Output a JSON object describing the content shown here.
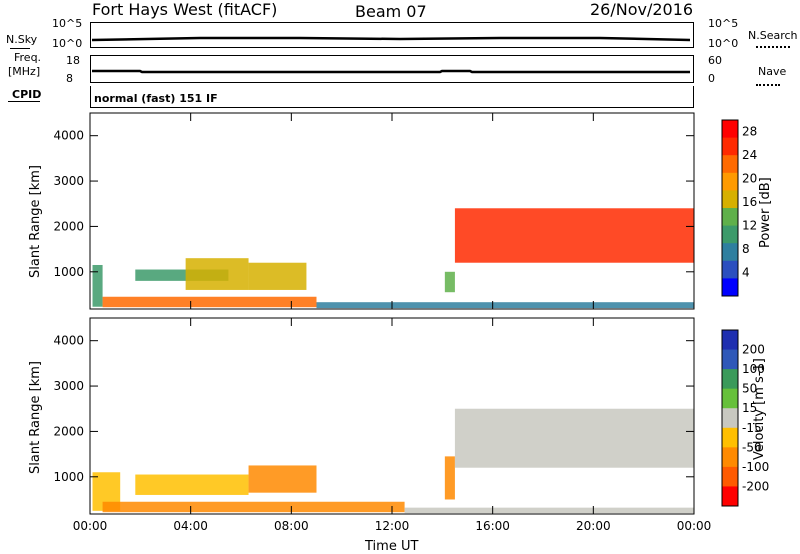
{
  "header": {
    "station": "Fort Hays West (fitACF)",
    "beam": "Beam 07",
    "date": "26/Nov/2016"
  },
  "top_panels": {
    "nsky": {
      "label": "N.Sky",
      "ticks": [
        "10^5",
        "10^0"
      ]
    },
    "nsearch": {
      "label": "N.Search",
      "ticks": [
        "10^5",
        "10^0"
      ]
    },
    "freq": {
      "label_line1": "Freq.",
      "label_line2": "[MHz]",
      "ticks": [
        "18",
        "8"
      ]
    },
    "nave": {
      "label": "Nave",
      "ticks": [
        "60",
        "0"
      ]
    },
    "cpid": {
      "label": "CPID",
      "value": "normal (fast) 151 IF"
    }
  },
  "chart_data": [
    {
      "type": "heatmap",
      "name": "power",
      "ylabel": "Slant Range [km]",
      "xlabel": "",
      "x_ticks": [
        "00:00",
        "04:00",
        "08:00",
        "12:00",
        "16:00",
        "20:00",
        "00:00"
      ],
      "y_ticks": [
        1000,
        2000,
        3000,
        4000
      ],
      "xlim_hours": [
        0,
        24
      ],
      "ylim_km": [
        180,
        4500
      ],
      "colorbar": {
        "label": "Power [dB]",
        "ticks": [
          4,
          8,
          12,
          16,
          20,
          24,
          28
        ],
        "range": [
          0,
          30
        ],
        "colors": [
          "#0000ff",
          "#2b4fbf",
          "#2f7f9f",
          "#3c9a6a",
          "#5fb04a",
          "#d6b000",
          "#ff9a00",
          "#ff6a00",
          "#ff2a00",
          "#ff0000"
        ]
      },
      "regions": [
        {
          "t0": 0.1,
          "t1": 0.5,
          "r0": 230,
          "r1": 1150,
          "level": 10
        },
        {
          "t0": 0.5,
          "t1": 9.0,
          "r0": 220,
          "r1": 450,
          "level": 22
        },
        {
          "t0": 9.0,
          "t1": 24,
          "r0": 200,
          "r1": 330,
          "level": 8
        },
        {
          "t0": 1.8,
          "t1": 5.5,
          "r0": 800,
          "r1": 1050,
          "level": 10
        },
        {
          "t0": 3.8,
          "t1": 6.3,
          "r0": 600,
          "r1": 1300,
          "level": 16
        },
        {
          "t0": 6.3,
          "t1": 8.6,
          "r0": 600,
          "r1": 1200,
          "level": 16
        },
        {
          "t0": 14.1,
          "t1": 14.5,
          "r0": 550,
          "r1": 1000,
          "level": 12
        },
        {
          "t0": 14.5,
          "t1": 24,
          "r0": 1200,
          "r1": 2400,
          "level": 24
        }
      ]
    },
    {
      "type": "heatmap",
      "name": "velocity",
      "ylabel": "Slant Range [km]",
      "xlabel": "Time UT",
      "x_ticks": [
        "00:00",
        "04:00",
        "08:00",
        "12:00",
        "16:00",
        "20:00",
        "00:00"
      ],
      "y_ticks": [
        1000,
        2000,
        3000,
        4000
      ],
      "xlim_hours": [
        0,
        24
      ],
      "ylim_km": [
        180,
        4500
      ],
      "colorbar": {
        "label": "Velocity [m s-1]",
        "ticks": [
          200,
          100,
          50,
          15,
          -15,
          -50,
          -100,
          -200
        ],
        "colors": [
          "#1f2fb0",
          "#2f58b8",
          "#3a9a5a",
          "#66c03a",
          "#c8c8c0",
          "#ffbf00",
          "#ff8a00",
          "#ff5a00",
          "#ff0000"
        ]
      },
      "regions": [
        {
          "t0": 0.1,
          "t1": 1.2,
          "r0": 250,
          "r1": 1100,
          "level": "-15"
        },
        {
          "t0": 0.5,
          "t1": 12.5,
          "r0": 220,
          "r1": 450,
          "level": "-50"
        },
        {
          "t0": 12.5,
          "t1": 24,
          "r0": 200,
          "r1": 320,
          "level": "15"
        },
        {
          "t0": 1.8,
          "t1": 6.3,
          "r0": 600,
          "r1": 1050,
          "level": "-15"
        },
        {
          "t0": 6.3,
          "t1": 9.0,
          "r0": 650,
          "r1": 1250,
          "level": "-50"
        },
        {
          "t0": 14.1,
          "t1": 14.5,
          "r0": 500,
          "r1": 1450,
          "level": "-50"
        },
        {
          "t0": 14.5,
          "t1": 24,
          "r0": 1200,
          "r1": 2500,
          "level": "15"
        }
      ]
    }
  ]
}
